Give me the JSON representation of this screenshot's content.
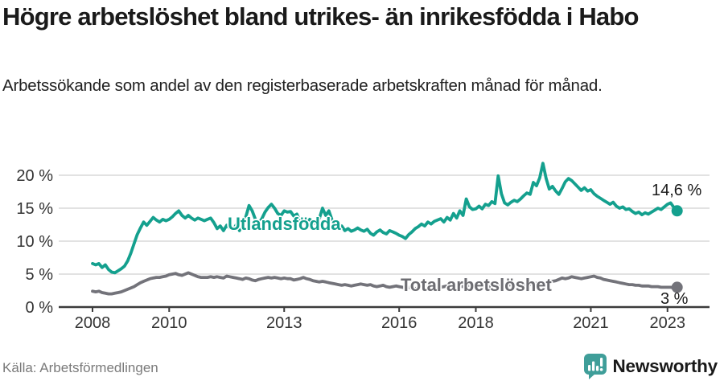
{
  "header": {
    "title": "Högre arbetslöshet bland utrikes- än inrikesfödda i Habo",
    "subtitle": "Arbetssökande som andel av den registerbaserade arbetskraften månad för månad."
  },
  "footer": {
    "source": "Källa: Arbetsförmedlingen",
    "brand": "Newsworthy",
    "brand_color": "#3f9e99",
    "brand_icon": "newsworthy-chart-bubble-icon"
  },
  "colors": {
    "accent_teal": "#14a08e",
    "neutral_gray": "#73737a",
    "gridline": "#d9d9d9",
    "axis": "#3b3b3b",
    "tick_text": "#333333"
  },
  "chart_data": {
    "type": "line",
    "unit": "%",
    "x_interval": "monthly",
    "x_start": "2008-01",
    "x_end": "2023-04",
    "ylim": [
      0,
      22.5
    ],
    "grid": true,
    "legend_position": "inline-labels",
    "y_ticks": [
      {
        "value": 0,
        "label": "0 %"
      },
      {
        "value": 5,
        "label": "5 %"
      },
      {
        "value": 10,
        "label": "10 %"
      },
      {
        "value": 15,
        "label": "15 %"
      },
      {
        "value": 20,
        "label": "20 %"
      }
    ],
    "x_ticks": [
      {
        "year": 2008,
        "label": "2008"
      },
      {
        "year": 2010,
        "label": "2010"
      },
      {
        "year": 2013,
        "label": "2013"
      },
      {
        "year": 2016,
        "label": "2016"
      },
      {
        "year": 2018,
        "label": "2018"
      },
      {
        "year": 2021,
        "label": "2021"
      },
      {
        "year": 2023,
        "label": "2023"
      }
    ],
    "series": [
      {
        "id": "utlandsfodda",
        "name": "Utlandsfödda",
        "color": "#14a08e",
        "end_label": "14,6 %",
        "end_value": 14.6,
        "values": [
          6.6,
          6.4,
          6.6,
          6.0,
          6.4,
          5.7,
          5.3,
          5.2,
          5.5,
          5.8,
          6.2,
          7.0,
          8.2,
          9.6,
          11.0,
          12.0,
          12.9,
          12.4,
          13.0,
          13.6,
          13.2,
          12.9,
          13.3,
          13.1,
          13.3,
          13.7,
          14.2,
          14.6,
          13.9,
          13.5,
          13.9,
          13.5,
          13.2,
          13.5,
          13.3,
          13.1,
          13.3,
          13.5,
          12.8,
          11.9,
          12.3,
          11.6,
          12.4,
          12.0,
          11.7,
          12.5,
          11.6,
          12.9,
          13.7,
          15.4,
          14.6,
          13.3,
          12.7,
          13.4,
          14.4,
          15.1,
          15.6,
          15.0,
          14.2,
          13.9,
          14.6,
          14.4,
          14.5,
          13.8,
          14.1,
          12.9,
          13.3,
          12.4,
          13.3,
          12.9,
          12.6,
          13.4,
          15.0,
          13.9,
          14.6,
          13.2,
          12.3,
          12.0,
          12.3,
          11.6,
          11.9,
          11.5,
          11.7,
          12.0,
          11.7,
          11.5,
          11.8,
          11.2,
          10.9,
          11.4,
          11.7,
          11.3,
          11.1,
          11.6,
          11.4,
          11.2,
          10.9,
          10.7,
          10.4,
          11.0,
          11.4,
          11.9,
          12.2,
          12.6,
          12.3,
          12.9,
          12.6,
          13.0,
          13.2,
          13.4,
          12.9,
          13.6,
          13.2,
          14.2,
          13.5,
          14.6,
          13.9,
          16.4,
          15.2,
          14.8,
          14.9,
          15.3,
          14.9,
          15.6,
          15.4,
          16.0,
          15.7,
          19.9,
          17.2,
          15.8,
          15.5,
          15.9,
          16.2,
          16.0,
          16.4,
          16.9,
          17.3,
          17.1,
          18.9,
          18.4,
          19.6,
          21.8,
          19.5,
          17.9,
          18.3,
          17.6,
          17.1,
          18.0,
          19.0,
          19.5,
          19.2,
          18.7,
          18.2,
          17.7,
          18.1,
          17.6,
          17.8,
          17.2,
          16.8,
          16.5,
          16.2,
          15.9,
          15.6,
          15.9,
          15.3,
          15.0,
          15.2,
          14.8,
          14.9,
          14.5,
          14.2,
          14.4,
          14.0,
          14.3,
          14.1,
          14.4,
          14.7,
          15.0,
          14.8,
          15.2,
          15.6,
          15.8,
          15.1,
          14.6
        ]
      },
      {
        "id": "total",
        "name": "Total arbetslöshet",
        "color": "#73737a",
        "end_label": "3 %",
        "end_value": 3.0,
        "values": [
          2.4,
          2.3,
          2.4,
          2.2,
          2.1,
          2.0,
          2.0,
          2.1,
          2.2,
          2.3,
          2.5,
          2.7,
          2.9,
          3.1,
          3.4,
          3.7,
          3.9,
          4.1,
          4.3,
          4.4,
          4.5,
          4.5,
          4.6,
          4.7,
          4.9,
          5.0,
          5.1,
          4.9,
          4.8,
          5.0,
          5.2,
          5.0,
          4.8,
          4.6,
          4.5,
          4.5,
          4.5,
          4.6,
          4.5,
          4.6,
          4.5,
          4.4,
          4.7,
          4.6,
          4.5,
          4.4,
          4.3,
          4.2,
          4.4,
          4.3,
          4.1,
          4.0,
          4.2,
          4.3,
          4.4,
          4.5,
          4.4,
          4.5,
          4.4,
          4.3,
          4.4,
          4.3,
          4.3,
          4.1,
          4.2,
          4.3,
          4.5,
          4.3,
          4.2,
          4.0,
          3.9,
          3.8,
          3.9,
          3.8,
          3.7,
          3.6,
          3.5,
          3.4,
          3.3,
          3.4,
          3.3,
          3.2,
          3.3,
          3.4,
          3.5,
          3.4,
          3.3,
          3.4,
          3.2,
          3.1,
          3.2,
          3.3,
          3.1,
          3.0,
          3.1,
          3.2,
          3.1,
          3.0,
          2.9,
          3.0,
          2.9,
          2.8,
          2.9,
          3.0,
          2.9,
          3.0,
          3.1,
          3.0,
          3.1,
          3.0,
          3.1,
          3.2,
          3.1,
          3.0,
          3.1,
          3.2,
          3.1,
          3.2,
          3.3,
          3.2,
          3.3,
          3.2,
          3.1,
          3.2,
          3.1,
          3.0,
          3.1,
          3.2,
          3.1,
          3.2,
          3.3,
          3.4,
          3.3,
          3.4,
          3.3,
          3.4,
          3.5,
          3.4,
          3.5,
          3.6,
          3.5,
          3.6,
          3.7,
          3.8,
          3.9,
          4.0,
          4.2,
          4.4,
          4.3,
          4.4,
          4.6,
          4.5,
          4.4,
          4.3,
          4.4,
          4.5,
          4.6,
          4.7,
          4.5,
          4.4,
          4.2,
          4.1,
          4.0,
          3.9,
          3.8,
          3.7,
          3.6,
          3.5,
          3.4,
          3.4,
          3.3,
          3.3,
          3.2,
          3.2,
          3.2,
          3.1,
          3.1,
          3.1,
          3.0,
          3.0,
          3.0,
          3.0,
          2.9,
          3.0
        ]
      }
    ]
  }
}
